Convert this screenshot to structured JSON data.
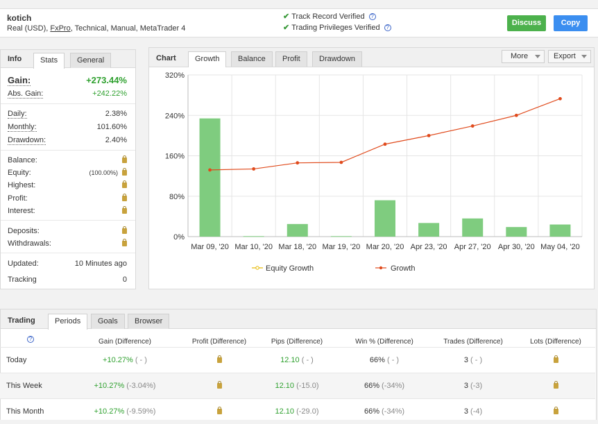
{
  "header": {
    "name": "kotich",
    "account_prefix": "Real (USD), ",
    "broker": "FxPro",
    "account_suffix": ", Technical, Manual, MetaTrader 4",
    "verified": [
      "Track Record Verified",
      "Trading Privileges Verified"
    ],
    "discuss_label": "Discuss",
    "copy_label": "Copy"
  },
  "info": {
    "title": "Info",
    "tabs": [
      "Stats",
      "General"
    ],
    "gain_label": "Gain:",
    "gain_value": "+273.44%",
    "abs_gain_label": "Abs. Gain:",
    "abs_gain_value": "+242.22%",
    "daily_label": "Daily:",
    "daily_value": "2.38%",
    "monthly_label": "Monthly:",
    "monthly_value": "101.60%",
    "drawdown_label": "Drawdown:",
    "drawdown_value": "2.40%",
    "balance_label": "Balance:",
    "equity_label": "Equity:",
    "equity_pct": "(100.00%)",
    "highest_label": "Highest:",
    "profit_label": "Profit:",
    "interest_label": "Interest:",
    "deposits_label": "Deposits:",
    "withdrawals_label": "Withdrawals:",
    "updated_label": "Updated:",
    "updated_value": "10 Minutes ago",
    "tracking_label": "Tracking",
    "tracking_value": "0",
    "lock_icon": "lock-icon",
    "gain_color": "#2ea02e"
  },
  "chart_panel": {
    "title": "Chart",
    "tabs": [
      "Growth",
      "Balance",
      "Profit",
      "Drawdown"
    ],
    "more_label": "More",
    "export_label": "Export"
  },
  "chart_data": {
    "type": "bar",
    "categories": [
      "Mar 09, '20",
      "Mar 10, '20",
      "Mar 18, '20",
      "Mar 19, '20",
      "Mar 20, '20",
      "Apr 23, '20",
      "Apr 27, '20",
      "Apr 30, '20",
      "May 04, '20"
    ],
    "yticks": [
      "320%",
      "240%",
      "160%",
      "80%",
      "0%"
    ],
    "ylim": [
      0,
      320
    ],
    "grid": true,
    "legend_position": "bottom",
    "series": [
      {
        "name": "Equity Growth",
        "kind": "bar",
        "color": "#7fcc7f",
        "values": [
          234,
          1,
          25,
          1,
          72,
          27,
          36,
          19,
          24
        ]
      },
      {
        "name": "Growth",
        "kind": "line",
        "color": "#e04a1c",
        "values": [
          132,
          134,
          146,
          147,
          183,
          200,
          219,
          240,
          273
        ]
      }
    ]
  },
  "trading": {
    "title": "Trading",
    "tabs": [
      "Periods",
      "Goals",
      "Browser"
    ],
    "columns": [
      "Gain (Difference)",
      "Profit (Difference)",
      "Pips (Difference)",
      "Win % (Difference)",
      "Trades (Difference)",
      "Lots (Difference)"
    ],
    "rows": [
      {
        "period": "Today",
        "gain": "+10.27%",
        "gain_diff": "( - )",
        "pips": "12.10",
        "pips_diff": "( - )",
        "win": "66%",
        "win_diff": "( - )",
        "trades": "3",
        "trades_diff": "( - )"
      },
      {
        "period": "This Week",
        "gain": "+10.27%",
        "gain_diff": "(-3.04%)",
        "pips": "12.10",
        "pips_diff": "(-15.0)",
        "win": "66%",
        "win_diff": "(-34%)",
        "trades": "3",
        "trades_diff": "(-3)"
      },
      {
        "period": "This Month",
        "gain": "+10.27%",
        "gain_diff": "(-9.59%)",
        "pips": "12.10",
        "pips_diff": "(-29.0)",
        "win": "66%",
        "win_diff": "(-34%)",
        "trades": "3",
        "trades_diff": "(-4)"
      }
    ]
  }
}
